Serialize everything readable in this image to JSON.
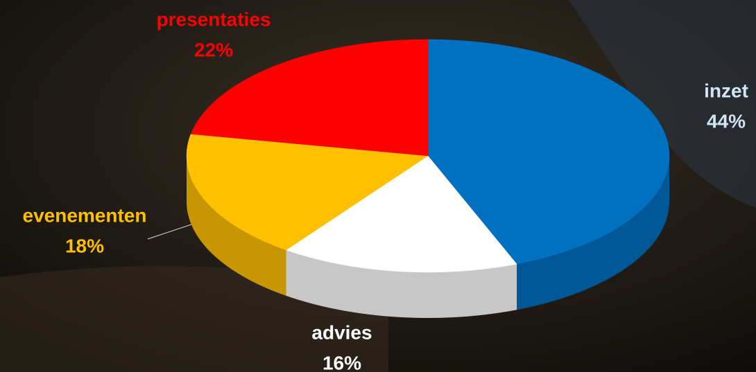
{
  "chart_data": {
    "type": "pie",
    "categories": [
      "inzet",
      "advies",
      "evenementen",
      "presentaties"
    ],
    "values": [
      44,
      16,
      18,
      22
    ],
    "value_labels": [
      "44%",
      "16%",
      "18%",
      "22%"
    ],
    "colors": [
      "#0070c0",
      "#ffffff",
      "#ffc000",
      "#ff0000"
    ],
    "label_colors": [
      "#cfe6f7",
      "#ffffff",
      "#ffc000",
      "#ff0000"
    ],
    "three_d": true
  }
}
